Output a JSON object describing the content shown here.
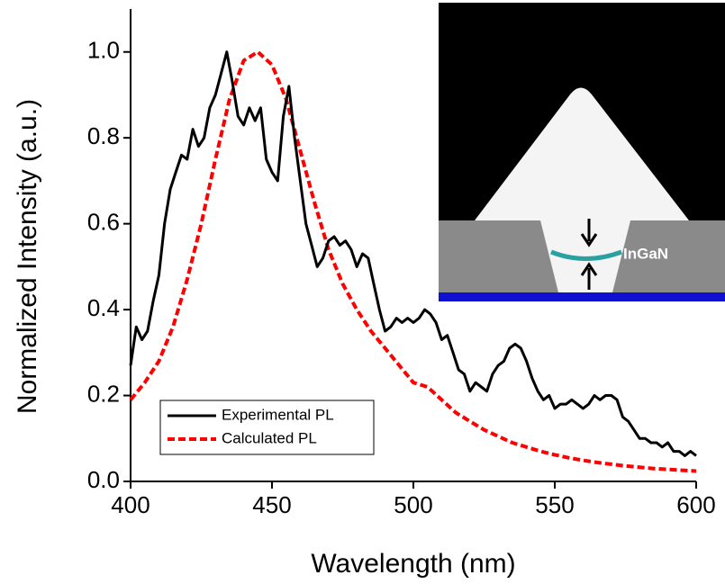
{
  "chart_data": {
    "type": "line",
    "xlabel": "Wavelength (nm)",
    "ylabel": "Normalized Intensity (a.u.)",
    "xlim": [
      400,
      600
    ],
    "ylim": [
      0,
      1.1
    ],
    "xticks": [
      400,
      450,
      500,
      550,
      600
    ],
    "yticks": [
      {
        "value": 0,
        "label": "0.0"
      },
      {
        "value": 0.2,
        "label": "0.2"
      },
      {
        "value": 0.4,
        "label": "0.4"
      },
      {
        "value": 0.6,
        "label": "0.6"
      },
      {
        "value": 0.8,
        "label": "0.8"
      },
      {
        "value": 1.0,
        "label": "1.0"
      }
    ],
    "legend": "lower left",
    "inset_label": "InGaN",
    "series": [
      {
        "name": "Experimental PL",
        "color": "#000000",
        "line_style": "solid",
        "x": [
          400,
          402,
          404,
          406,
          408,
          410,
          412,
          414,
          416,
          418,
          420,
          422,
          424,
          426,
          428,
          430,
          432,
          434,
          436,
          438,
          440,
          442,
          444,
          446,
          448,
          450,
          452,
          454,
          456,
          458,
          460,
          462,
          464,
          466,
          468,
          470,
          472,
          474,
          476,
          478,
          480,
          482,
          484,
          486,
          488,
          490,
          492,
          494,
          496,
          498,
          500,
          502,
          504,
          506,
          508,
          510,
          512,
          514,
          516,
          518,
          520,
          522,
          524,
          526,
          528,
          530,
          532,
          534,
          536,
          538,
          540,
          542,
          544,
          546,
          548,
          550,
          552,
          554,
          556,
          558,
          560,
          562,
          564,
          566,
          568,
          570,
          572,
          574,
          576,
          578,
          580,
          582,
          584,
          586,
          588,
          590,
          592,
          594,
          596,
          598,
          600
        ],
        "values": [
          0.27,
          0.36,
          0.33,
          0.35,
          0.42,
          0.48,
          0.6,
          0.68,
          0.72,
          0.76,
          0.75,
          0.82,
          0.78,
          0.8,
          0.87,
          0.9,
          0.95,
          1.0,
          0.93,
          0.85,
          0.83,
          0.87,
          0.84,
          0.87,
          0.75,
          0.72,
          0.7,
          0.85,
          0.92,
          0.8,
          0.7,
          0.6,
          0.55,
          0.5,
          0.52,
          0.56,
          0.57,
          0.55,
          0.56,
          0.54,
          0.5,
          0.53,
          0.52,
          0.46,
          0.4,
          0.35,
          0.36,
          0.38,
          0.37,
          0.38,
          0.37,
          0.38,
          0.4,
          0.39,
          0.37,
          0.33,
          0.34,
          0.3,
          0.26,
          0.25,
          0.21,
          0.23,
          0.22,
          0.21,
          0.25,
          0.27,
          0.28,
          0.31,
          0.32,
          0.31,
          0.28,
          0.24,
          0.21,
          0.19,
          0.2,
          0.17,
          0.18,
          0.18,
          0.19,
          0.18,
          0.17,
          0.18,
          0.2,
          0.19,
          0.2,
          0.2,
          0.19,
          0.15,
          0.14,
          0.12,
          0.1,
          0.1,
          0.09,
          0.09,
          0.08,
          0.09,
          0.07,
          0.07,
          0.06,
          0.07,
          0.06
        ]
      },
      {
        "name": "Calculated PL",
        "color": "#ff0000",
        "line_style": "dashed",
        "x": [
          400,
          405,
          410,
          415,
          420,
          425,
          430,
          435,
          440,
          445,
          450,
          455,
          460,
          465,
          470,
          475,
          480,
          485,
          490,
          495,
          500,
          505,
          510,
          515,
          520,
          525,
          530,
          535,
          540,
          545,
          550,
          555,
          560,
          565,
          570,
          575,
          580,
          585,
          590,
          595,
          600
        ],
        "values": [
          0.19,
          0.23,
          0.28,
          0.36,
          0.47,
          0.6,
          0.75,
          0.89,
          0.98,
          1.0,
          0.97,
          0.89,
          0.77,
          0.65,
          0.54,
          0.46,
          0.4,
          0.35,
          0.31,
          0.27,
          0.23,
          0.22,
          0.19,
          0.16,
          0.14,
          0.12,
          0.105,
          0.09,
          0.08,
          0.07,
          0.062,
          0.055,
          0.049,
          0.044,
          0.04,
          0.036,
          0.033,
          0.03,
          0.028,
          0.026,
          0.024
        ]
      }
    ]
  }
}
